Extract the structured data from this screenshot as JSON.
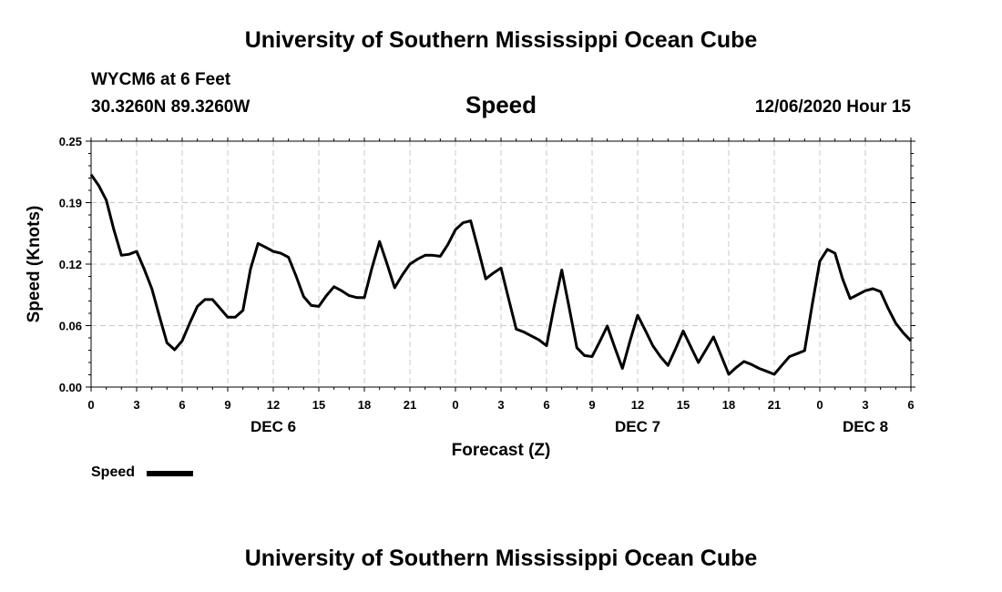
{
  "header": {
    "title_top": "University of Southern Mississippi Ocean Cube",
    "station": "WYCM6 at 6 Feet",
    "coords": "30.3260N 89.3260W",
    "chart_title": "Speed",
    "datetime": "12/06/2020 Hour 15"
  },
  "footer": {
    "title_bottom": "University of Southern Mississippi Ocean Cube"
  },
  "legend": {
    "label": "Speed",
    "color": "#000000"
  },
  "chart_data": {
    "type": "line",
    "xlabel": "Forecast (Z)",
    "ylabel": "Speed (Knots)",
    "xlim": [
      0,
      54
    ],
    "ylim": [
      0,
      0.25
    ],
    "y_ticks": [
      "0.00",
      "0.06",
      "0.12",
      "0.19",
      "0.25"
    ],
    "y_tick_values": [
      0,
      0.0625,
      0.125,
      0.1875,
      0.25
    ],
    "x_ticks": [
      {
        "x": 0,
        "label": "0"
      },
      {
        "x": 3,
        "label": "3"
      },
      {
        "x": 6,
        "label": "6"
      },
      {
        "x": 9,
        "label": "9"
      },
      {
        "x": 12,
        "label": "12"
      },
      {
        "x": 15,
        "label": "15"
      },
      {
        "x": 18,
        "label": "18"
      },
      {
        "x": 21,
        "label": "21"
      },
      {
        "x": 24,
        "label": "0"
      },
      {
        "x": 27,
        "label": "3"
      },
      {
        "x": 30,
        "label": "6"
      },
      {
        "x": 33,
        "label": "9"
      },
      {
        "x": 36,
        "label": "12"
      },
      {
        "x": 39,
        "label": "15"
      },
      {
        "x": 42,
        "label": "18"
      },
      {
        "x": 45,
        "label": "21"
      },
      {
        "x": 48,
        "label": "0"
      },
      {
        "x": 51,
        "label": "3"
      },
      {
        "x": 54,
        "label": "6"
      }
    ],
    "day_labels": [
      {
        "x": 12,
        "label": "DEC 6"
      },
      {
        "x": 36,
        "label": "DEC 7"
      },
      {
        "x": 51,
        "label": "DEC 8"
      }
    ],
    "grid": true,
    "series": [
      {
        "name": "Speed",
        "color": "#000000",
        "x": [
          0,
          0.5,
          1,
          1.5,
          2,
          2.5,
          3,
          3.5,
          4,
          4.5,
          5,
          5.5,
          6,
          6.5,
          7,
          7.5,
          8,
          8.5,
          9,
          9.5,
          10,
          10.5,
          11,
          11.5,
          12,
          12.5,
          13,
          13.5,
          14,
          14.5,
          15,
          15.5,
          16,
          16.5,
          17,
          17.5,
          18,
          18.5,
          19,
          19.5,
          20,
          20.5,
          21,
          21.5,
          22,
          22.5,
          23,
          23.5,
          24,
          24.5,
          25,
          25.5,
          26,
          26.5,
          27,
          27.5,
          28,
          28.5,
          29,
          29.5,
          30,
          30.5,
          31,
          31.5,
          32,
          32.5,
          33,
          33.5,
          34,
          34.5,
          35,
          35.5,
          36,
          36.5,
          37,
          37.5,
          38,
          38.5,
          39,
          39.5,
          40,
          40.5,
          41,
          41.5,
          42,
          42.5,
          43,
          43.5,
          44,
          44.5,
          45,
          45.5,
          46,
          46.5,
          47,
          47.5,
          48,
          48.5,
          49,
          49.5,
          50,
          50.5,
          51,
          51.5,
          52,
          52.5,
          53,
          53.5,
          54
        ],
        "values": [
          0.216,
          0.205,
          0.19,
          0.16,
          0.134,
          0.135,
          0.138,
          0.12,
          0.1,
          0.072,
          0.045,
          0.038,
          0.047,
          0.065,
          0.082,
          0.089,
          0.089,
          0.08,
          0.071,
          0.071,
          0.078,
          0.12,
          0.146,
          0.142,
          0.138,
          0.136,
          0.132,
          0.113,
          0.092,
          0.083,
          0.082,
          0.093,
          0.102,
          0.098,
          0.093,
          0.091,
          0.091,
          0.121,
          0.148,
          0.125,
          0.101,
          0.114,
          0.125,
          0.13,
          0.134,
          0.134,
          0.133,
          0.145,
          0.16,
          0.167,
          0.169,
          0.14,
          0.11,
          0.116,
          0.121,
          0.09,
          0.059,
          0.056,
          0.052,
          0.048,
          0.042,
          0.082,
          0.119,
          0.08,
          0.04,
          0.032,
          0.031,
          0.046,
          0.062,
          0.04,
          0.019,
          0.047,
          0.073,
          0.058,
          0.042,
          0.031,
          0.022,
          0.039,
          0.057,
          0.041,
          0.025,
          0.038,
          0.051,
          0.032,
          0.013,
          0.02,
          0.026,
          0.023,
          0.019,
          0.016,
          0.013,
          0.022,
          0.031,
          0.034,
          0.037,
          0.084,
          0.128,
          0.14,
          0.136,
          0.11,
          0.09,
          0.094,
          0.098,
          0.1,
          0.097,
          0.08,
          0.065,
          0.055,
          0.047
        ]
      }
    ]
  }
}
